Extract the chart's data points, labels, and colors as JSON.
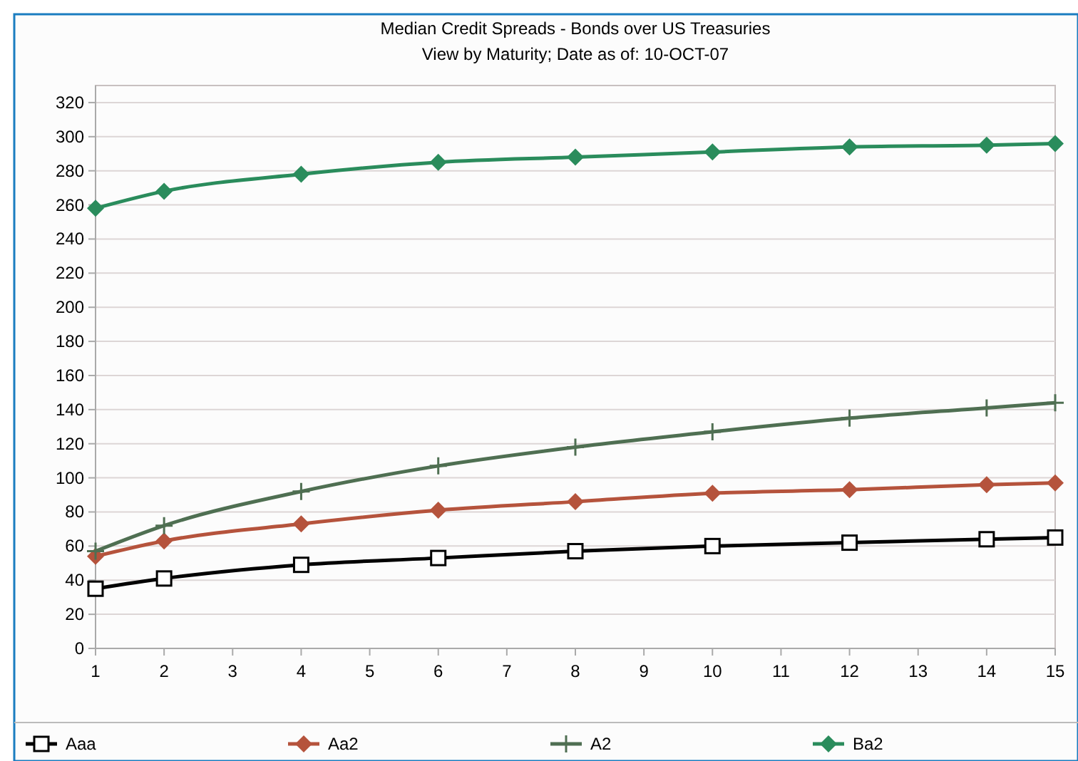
{
  "chart_data": {
    "type": "line",
    "title": "Median Credit Spreads - Bonds over US Treasuries",
    "subtitle": "View by Maturity; Date as of: 10-OCT-07",
    "x": [
      1,
      2,
      4,
      6,
      8,
      10,
      12,
      14,
      15
    ],
    "series": [
      {
        "name": "Aaa",
        "color": "#000000",
        "marker": "square",
        "values": [
          35,
          41,
          49,
          53,
          57,
          60,
          62,
          64,
          65
        ]
      },
      {
        "name": "Aa2",
        "color": "#b5533c",
        "marker": "diamond",
        "values": [
          54,
          63,
          73,
          81,
          86,
          91,
          93,
          96,
          97
        ]
      },
      {
        "name": "A2",
        "color": "#4f6f52",
        "marker": "cross",
        "values": [
          57,
          72,
          92,
          107,
          118,
          127,
          135,
          141,
          144
        ]
      },
      {
        "name": "Ba2",
        "color": "#2a8c5c",
        "marker": "diamond",
        "values": [
          258,
          268,
          278,
          285,
          288,
          291,
          294,
          295,
          296
        ]
      }
    ],
    "xlim": [
      1,
      15
    ],
    "xticks": [
      1,
      2,
      3,
      4,
      5,
      6,
      7,
      8,
      9,
      10,
      11,
      12,
      13,
      14,
      15
    ],
    "ylim": [
      0,
      330
    ],
    "yticks": [
      0,
      20,
      40,
      60,
      80,
      100,
      120,
      140,
      160,
      180,
      200,
      220,
      240,
      260,
      280,
      300,
      320
    ],
    "grid": "y",
    "legend": "bottom"
  }
}
